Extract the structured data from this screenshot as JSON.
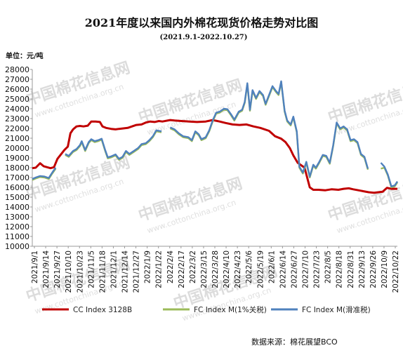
{
  "chart_data": {
    "type": "line",
    "title": "2021年度以来国内外棉花现货价格走势对比图",
    "subtitle": "(2021.9.1-2022.10.27)",
    "unit_label": "单位：元/吨",
    "source": "数据来源：棉花展望BCO",
    "watermark": {
      "cn": "中国棉花信息网",
      "en": "www.cottonchina.org.cn"
    },
    "ylim": [
      10000,
      28000
    ],
    "yticks": [
      10000,
      11000,
      12000,
      13000,
      14000,
      15000,
      16000,
      17000,
      18000,
      19000,
      20000,
      21000,
      22000,
      23000,
      24000,
      25000,
      26000,
      27000,
      28000
    ],
    "x_range": [
      "2021-09-01",
      "2022-10-27"
    ],
    "xtick_labels": [
      "2021/9/1",
      "2021/9/14",
      "2021/9/27",
      "2021/10/10",
      "2021/10/23",
      "2021/11/5",
      "2021/11/18",
      "2021/12/1",
      "2021/12/14",
      "2021/12/27",
      "2022/1/9",
      "2022/1/22",
      "2022/2/4",
      "2022/2/17",
      "2022/3/2",
      "2022/3/15",
      "2022/3/28",
      "2022/4/10",
      "2022/4/23",
      "2022/5/6",
      "2022/5/19",
      "2022/6/1",
      "2022/6/14",
      "2022/6/27",
      "2022/7/10",
      "2022/7/23",
      "2022/8/5",
      "2022/8/18",
      "2022/8/31",
      "2022/9/13",
      "2022/9/26",
      "2022/10/9",
      "2022/10/22"
    ],
    "grid": false,
    "legend_position": "bottom",
    "series": [
      {
        "name": "CC Index 3128B",
        "color": "#c00000",
        "x": [
          "2021-09-01",
          "2021-09-05",
          "2021-09-10",
          "2021-09-14",
          "2021-09-18",
          "2021-09-22",
          "2021-09-26",
          "2021-09-30",
          "2021-10-08",
          "2021-10-12",
          "2021-10-15",
          "2021-10-18",
          "2021-10-22",
          "2021-10-26",
          "2021-10-30",
          "2021-11-04",
          "2021-11-08",
          "2021-11-13",
          "2021-11-18",
          "2021-11-21",
          "2021-11-25",
          "2021-12-01",
          "2021-12-06",
          "2021-12-10",
          "2021-12-15",
          "2021-12-20",
          "2021-12-25",
          "2021-12-30",
          "2022-01-05",
          "2022-01-10",
          "2022-01-15",
          "2022-01-20",
          "2022-01-25",
          "2022-01-29",
          "2022-02-07",
          "2022-02-12",
          "2022-02-20",
          "2022-03-01",
          "2022-03-10",
          "2022-03-20",
          "2022-03-28",
          "2022-04-05",
          "2022-04-12",
          "2022-04-20",
          "2022-04-28",
          "2022-05-06",
          "2022-05-14",
          "2022-05-22",
          "2022-06-01",
          "2022-06-08",
          "2022-06-15",
          "2022-06-20",
          "2022-06-25",
          "2022-06-29",
          "2022-07-04",
          "2022-07-08",
          "2022-07-12",
          "2022-07-15",
          "2022-07-18",
          "2022-07-22",
          "2022-07-28",
          "2022-08-05",
          "2022-08-12",
          "2022-08-20",
          "2022-08-26",
          "2022-09-01",
          "2022-09-06",
          "2022-09-12",
          "2022-09-18",
          "2022-09-24",
          "2022-09-30",
          "2022-10-05",
          "2022-10-10",
          "2022-10-15",
          "2022-10-20",
          "2022-10-27"
        ],
        "values": [
          17950,
          18000,
          18450,
          18150,
          18050,
          17950,
          18050,
          18900,
          19800,
          20150,
          21500,
          21900,
          22200,
          22250,
          22200,
          22280,
          22700,
          22700,
          22650,
          22200,
          22050,
          21950,
          21900,
          21950,
          22000,
          22050,
          22200,
          22350,
          22400,
          22600,
          22700,
          22650,
          22750,
          22700,
          22850,
          22800,
          22750,
          22700,
          22650,
          22700,
          22850,
          22700,
          22550,
          22400,
          22350,
          22400,
          22200,
          22050,
          21750,
          21200,
          20950,
          20600,
          20000,
          19250,
          18500,
          18250,
          18000,
          17000,
          16000,
          15750,
          15750,
          15700,
          15800,
          15750,
          15850,
          15900,
          15800,
          15700,
          15600,
          15500,
          15450,
          15500,
          15550,
          15950,
          15850,
          15850
        ]
      },
      {
        "name": "FC Index M(1%关税)",
        "color": "#9bbb59",
        "x": [
          "2021-09-01",
          "2021-09-05",
          "2021-09-10",
          "2021-09-15",
          "2021-09-20",
          "2021-09-24",
          "2021-09-28",
          "2021-10-09",
          "2021-10-13",
          "2021-10-18",
          "2021-10-22",
          "2021-10-26",
          "2021-10-28",
          "2021-11-01",
          "2021-11-05",
          "2021-11-08",
          "2021-11-12",
          "2021-11-16",
          "2021-11-20",
          "2021-11-24",
          "2021-11-27",
          "2021-12-01",
          "2021-12-06",
          "2021-12-10",
          "2021-12-14",
          "2021-12-18",
          "2021-12-22",
          "2021-12-27",
          "2022-01-01",
          "2022-01-05",
          "2022-01-10",
          "2022-01-14",
          "2022-01-18",
          "2022-01-22",
          "2022-01-28",
          "2022-02-07",
          "2022-02-12",
          "2022-02-17",
          "2022-02-22",
          "2022-02-28",
          "2022-03-04",
          "2022-03-08",
          "2022-03-12",
          "2022-03-15",
          "2022-03-20",
          "2022-03-24",
          "2022-03-28",
          "2022-04-01",
          "2022-04-05",
          "2022-04-10",
          "2022-04-14",
          "2022-04-18",
          "2022-04-22",
          "2022-04-27",
          "2022-05-01",
          "2022-05-04",
          "2022-05-07",
          "2022-05-10",
          "2022-05-13",
          "2022-05-17",
          "2022-05-21",
          "2022-05-25",
          "2022-05-28",
          "2022-06-01",
          "2022-06-05",
          "2022-06-09",
          "2022-06-12",
          "2022-06-15",
          "2022-06-19",
          "2022-06-22",
          "2022-06-26",
          "2022-06-29",
          "2022-07-03",
          "2022-07-06",
          "2022-07-10",
          "2022-07-14",
          "2022-07-18",
          "2022-07-22",
          "2022-07-25",
          "2022-07-29",
          "2022-08-02",
          "2022-08-06",
          "2022-08-10",
          "2022-08-14",
          "2022-08-18",
          "2022-08-22",
          "2022-08-26",
          "2022-08-30",
          "2022-09-03",
          "2022-09-07",
          "2022-09-11",
          "2022-09-15",
          "2022-09-19",
          "2022-09-23",
          "2022-10-08",
          "2022-10-12",
          "2022-10-16",
          "2022-10-20",
          "2022-10-24",
          "2022-10-27"
        ],
        "values": [
          16750,
          16900,
          17050,
          17000,
          16850,
          17400,
          17900,
          19300,
          19100,
          19600,
          19800,
          20200,
          20600,
          19700,
          20500,
          20800,
          20600,
          20700,
          20850,
          19700,
          18950,
          19050,
          19250,
          18800,
          19000,
          19600,
          19300,
          19600,
          19900,
          20300,
          20400,
          20700,
          21100,
          21700,
          21600,
          22000,
          21800,
          21400,
          21100,
          21000,
          20700,
          21600,
          21300,
          20800,
          21000,
          21700,
          22700,
          23500,
          23600,
          23900,
          23850,
          23350,
          22800,
          23600,
          23800,
          24600,
          26500,
          23800,
          25800,
          25000,
          25700,
          25300,
          24400,
          25300,
          26200,
          25700,
          25400,
          26700,
          23700,
          22700,
          22300,
          23100,
          21600,
          18000,
          17400,
          18500,
          17000,
          18200,
          17900,
          18500,
          19200,
          19100,
          18400,
          20200,
          22500,
          21900,
          22100,
          21800,
          20700,
          20800,
          20500,
          19300,
          19000,
          17800,
          17900,
          18000,
          17200,
          16000,
          16100,
          16500
        ]
      },
      {
        "name": "FC Index M(滑准税)",
        "color": "#4f81bd",
        "x": [
          "2021-09-01",
          "2021-09-05",
          "2021-09-10",
          "2021-09-15",
          "2021-09-20",
          "2021-09-24",
          "2021-09-28",
          "2021-10-09",
          "2021-10-13",
          "2021-10-18",
          "2021-10-22",
          "2021-10-26",
          "2021-10-28",
          "2021-11-01",
          "2021-11-05",
          "2021-11-08",
          "2021-11-12",
          "2021-11-16",
          "2021-11-20",
          "2021-11-24",
          "2021-11-27",
          "2021-12-01",
          "2021-12-06",
          "2021-12-10",
          "2021-12-14",
          "2021-12-18",
          "2021-12-22",
          "2021-12-27",
          "2022-01-01",
          "2022-01-05",
          "2022-01-10",
          "2022-01-14",
          "2022-01-18",
          "2022-01-22",
          "2022-01-28",
          "2022-02-07",
          "2022-02-12",
          "2022-02-17",
          "2022-02-22",
          "2022-02-28",
          "2022-03-04",
          "2022-03-08",
          "2022-03-12",
          "2022-03-15",
          "2022-03-20",
          "2022-03-24",
          "2022-03-28",
          "2022-04-01",
          "2022-04-05",
          "2022-04-10",
          "2022-04-14",
          "2022-04-18",
          "2022-04-22",
          "2022-04-27",
          "2022-05-01",
          "2022-05-04",
          "2022-05-07",
          "2022-05-10",
          "2022-05-13",
          "2022-05-17",
          "2022-05-21",
          "2022-05-25",
          "2022-05-28",
          "2022-06-01",
          "2022-06-05",
          "2022-06-09",
          "2022-06-12",
          "2022-06-15",
          "2022-06-19",
          "2022-06-22",
          "2022-06-26",
          "2022-06-29",
          "2022-07-03",
          "2022-07-06",
          "2022-07-10",
          "2022-07-14",
          "2022-07-18",
          "2022-07-22",
          "2022-07-25",
          "2022-07-29",
          "2022-08-02",
          "2022-08-06",
          "2022-08-10",
          "2022-08-14",
          "2022-08-18",
          "2022-08-22",
          "2022-08-26",
          "2022-08-30",
          "2022-09-03",
          "2022-09-07",
          "2022-09-11",
          "2022-09-15",
          "2022-09-19",
          "2022-09-23",
          "2022-10-08",
          "2022-10-12",
          "2022-10-16",
          "2022-10-20",
          "2022-10-24",
          "2022-10-27"
        ],
        "values": [
          16850,
          17000,
          17150,
          17100,
          16950,
          17500,
          18000,
          19400,
          19200,
          19700,
          19900,
          20300,
          20700,
          19800,
          20600,
          20900,
          20700,
          20800,
          20950,
          19800,
          19050,
          19150,
          19350,
          18900,
          19100,
          19700,
          19400,
          19700,
          20000,
          20400,
          20500,
          20800,
          21200,
          21800,
          21700,
          22100,
          21900,
          21500,
          21200,
          21100,
          20800,
          21700,
          21400,
          20900,
          21100,
          21800,
          22800,
          23600,
          23700,
          24000,
          23950,
          23450,
          22900,
          23700,
          23900,
          24700,
          26600,
          23900,
          25900,
          25100,
          25800,
          25400,
          24500,
          25400,
          26300,
          25800,
          25500,
          26800,
          23800,
          22800,
          22400,
          23200,
          21700,
          18100,
          17500,
          18600,
          17100,
          18300,
          18000,
          18600,
          19300,
          19200,
          18500,
          20300,
          22600,
          22000,
          22200,
          21900,
          20800,
          20900,
          20600,
          19400,
          19100,
          17900,
          18500,
          18100,
          17300,
          16100,
          16200,
          16600
        ]
      }
    ]
  }
}
